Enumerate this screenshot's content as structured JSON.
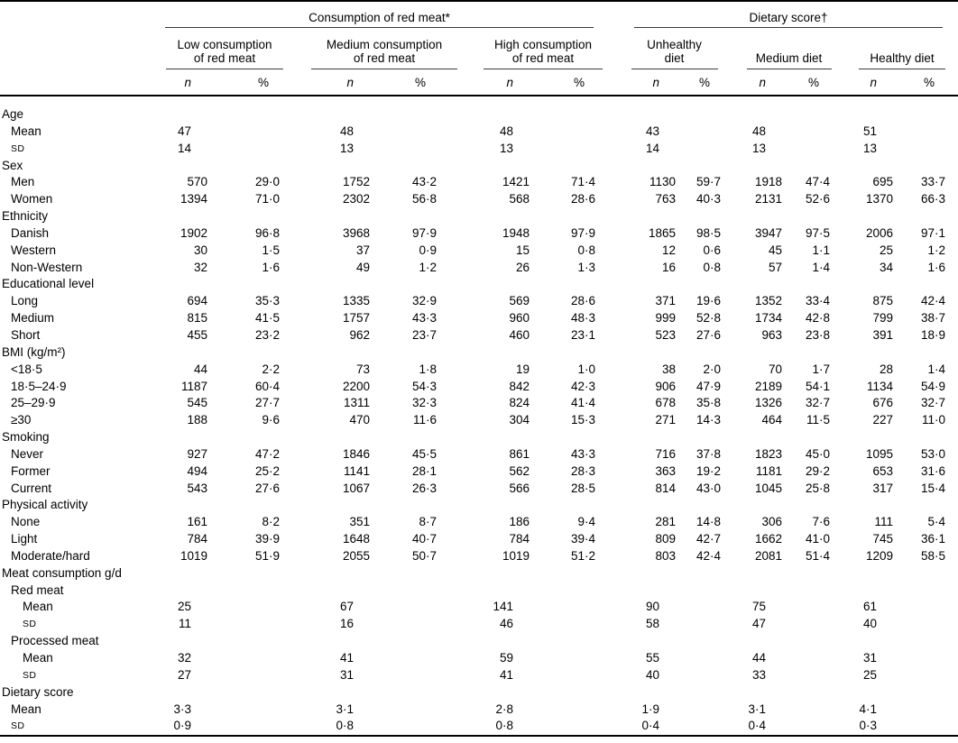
{
  "table": {
    "group_headers": [
      {
        "label": "Consumption of red meat*"
      },
      {
        "label": "Dietary score†"
      }
    ],
    "column_groups": [
      {
        "line1": "Low consumption",
        "line2": "of red meat"
      },
      {
        "line1": "Medium consumption",
        "line2": "of red meat"
      },
      {
        "line1": "High consumption",
        "line2": "of red meat"
      },
      {
        "line1": "Unhealthy",
        "line2": "diet"
      },
      {
        "line1": "Medium diet",
        "line2": ""
      },
      {
        "line1": "Healthy diet",
        "line2": ""
      }
    ],
    "subcolumns": {
      "n": "n",
      "pct": "%"
    },
    "rows": [
      {
        "type": "section",
        "label": "Age",
        "indent": 0
      },
      {
        "type": "stat",
        "label": "Mean",
        "indent": 1,
        "values": [
          "47",
          "48",
          "48",
          "43",
          "48",
          "51"
        ]
      },
      {
        "type": "stat",
        "label": "SD",
        "indent": 1,
        "smallcaps": true,
        "values": [
          "14",
          "13",
          "13",
          "14",
          "13",
          "13"
        ]
      },
      {
        "type": "section",
        "label": "Sex",
        "indent": 0
      },
      {
        "type": "data",
        "label": "Men",
        "indent": 1,
        "values": [
          "570",
          "29·0",
          "1752",
          "43·2",
          "1421",
          "71·4",
          "1130",
          "59·7",
          "1918",
          "47·4",
          "695",
          "33·7"
        ]
      },
      {
        "type": "data",
        "label": "Women",
        "indent": 1,
        "values": [
          "1394",
          "71·0",
          "2302",
          "56·8",
          "568",
          "28·6",
          "763",
          "40·3",
          "2131",
          "52·6",
          "1370",
          "66·3"
        ]
      },
      {
        "type": "section",
        "label": "Ethnicity",
        "indent": 0
      },
      {
        "type": "data",
        "label": "Danish",
        "indent": 1,
        "values": [
          "1902",
          "96·8",
          "3968",
          "97·9",
          "1948",
          "97·9",
          "1865",
          "98·5",
          "3947",
          "97·5",
          "2006",
          "97·1"
        ]
      },
      {
        "type": "data",
        "label": "Western",
        "indent": 1,
        "values": [
          "30",
          "1·5",
          "37",
          "0·9",
          "15",
          "0·8",
          "12",
          "0·6",
          "45",
          "1·1",
          "25",
          "1·2"
        ]
      },
      {
        "type": "data",
        "label": "Non-Western",
        "indent": 1,
        "values": [
          "32",
          "1·6",
          "49",
          "1·2",
          "26",
          "1·3",
          "16",
          "0·8",
          "57",
          "1·4",
          "34",
          "1·6"
        ]
      },
      {
        "type": "section",
        "label": "Educational level",
        "indent": 0
      },
      {
        "type": "data",
        "label": "Long",
        "indent": 1,
        "values": [
          "694",
          "35·3",
          "1335",
          "32·9",
          "569",
          "28·6",
          "371",
          "19·6",
          "1352",
          "33·4",
          "875",
          "42·4"
        ]
      },
      {
        "type": "data",
        "label": "Medium",
        "indent": 1,
        "values": [
          "815",
          "41·5",
          "1757",
          "43·3",
          "960",
          "48·3",
          "999",
          "52·8",
          "1734",
          "42·8",
          "799",
          "38·7"
        ]
      },
      {
        "type": "data",
        "label": "Short",
        "indent": 1,
        "values": [
          "455",
          "23·2",
          "962",
          "23·7",
          "460",
          "23·1",
          "523",
          "27·6",
          "963",
          "23·8",
          "391",
          "18·9"
        ]
      },
      {
        "type": "section",
        "label": "BMI (kg/m²)",
        "indent": 0
      },
      {
        "type": "data",
        "label": "<18·5",
        "indent": 1,
        "values": [
          "44",
          "2·2",
          "73",
          "1·8",
          "19",
          "1·0",
          "38",
          "2·0",
          "70",
          "1·7",
          "28",
          "1·4"
        ]
      },
      {
        "type": "data",
        "label": "18·5–24·9",
        "indent": 1,
        "values": [
          "1187",
          "60·4",
          "2200",
          "54·3",
          "842",
          "42·3",
          "906",
          "47·9",
          "2189",
          "54·1",
          "1134",
          "54·9"
        ]
      },
      {
        "type": "data",
        "label": "25–29·9",
        "indent": 1,
        "values": [
          "545",
          "27·7",
          "1311",
          "32·3",
          "824",
          "41·4",
          "678",
          "35·8",
          "1326",
          "32·7",
          "676",
          "32·7"
        ]
      },
      {
        "type": "data",
        "label": "≥30",
        "indent": 1,
        "values": [
          "188",
          "9·6",
          "470",
          "11·6",
          "304",
          "15·3",
          "271",
          "14·3",
          "464",
          "11·5",
          "227",
          "11·0"
        ]
      },
      {
        "type": "section",
        "label": "Smoking",
        "indent": 0
      },
      {
        "type": "data",
        "label": "Never",
        "indent": 1,
        "values": [
          "927",
          "47·2",
          "1846",
          "45·5",
          "861",
          "43·3",
          "716",
          "37·8",
          "1823",
          "45·0",
          "1095",
          "53·0"
        ]
      },
      {
        "type": "data",
        "label": "Former",
        "indent": 1,
        "values": [
          "494",
          "25·2",
          "1141",
          "28·1",
          "562",
          "28·3",
          "363",
          "19·2",
          "1181",
          "29·2",
          "653",
          "31·6"
        ]
      },
      {
        "type": "data",
        "label": "Current",
        "indent": 1,
        "values": [
          "543",
          "27·6",
          "1067",
          "26·3",
          "566",
          "28·5",
          "814",
          "43·0",
          "1045",
          "25·8",
          "317",
          "15·4"
        ]
      },
      {
        "type": "section",
        "label": "Physical activity",
        "indent": 0
      },
      {
        "type": "data",
        "label": "None",
        "indent": 1,
        "values": [
          "161",
          "8·2",
          "351",
          "8·7",
          "186",
          "9·4",
          "281",
          "14·8",
          "306",
          "7·6",
          "111",
          "5·4"
        ]
      },
      {
        "type": "data",
        "label": "Light",
        "indent": 1,
        "values": [
          "784",
          "39·9",
          "1648",
          "40·7",
          "784",
          "39·4",
          "809",
          "42·7",
          "1662",
          "41·0",
          "745",
          "36·1"
        ]
      },
      {
        "type": "data",
        "label": "Moderate/hard",
        "indent": 1,
        "values": [
          "1019",
          "51·9",
          "2055",
          "50·7",
          "1019",
          "51·2",
          "803",
          "42·4",
          "2081",
          "51·4",
          "1209",
          "58·5"
        ]
      },
      {
        "type": "section",
        "label": "Meat consumption g/d",
        "indent": 0
      },
      {
        "type": "section",
        "label": "Red meat",
        "indent": 1
      },
      {
        "type": "stat",
        "label": "Mean",
        "indent": 2,
        "values": [
          "25",
          "67",
          "141",
          "90",
          "75",
          "61"
        ]
      },
      {
        "type": "stat",
        "label": "SD",
        "indent": 2,
        "smallcaps": true,
        "values": [
          "11",
          "16",
          "46",
          "58",
          "47",
          "40"
        ]
      },
      {
        "type": "section",
        "label": "Processed meat",
        "indent": 1
      },
      {
        "type": "stat",
        "label": "Mean",
        "indent": 2,
        "values": [
          "32",
          "41",
          "59",
          "55",
          "44",
          "31"
        ]
      },
      {
        "type": "stat",
        "label": "SD",
        "indent": 2,
        "smallcaps": true,
        "values": [
          "27",
          "31",
          "41",
          "40",
          "33",
          "25"
        ]
      },
      {
        "type": "section",
        "label": "Dietary score",
        "indent": 0
      },
      {
        "type": "stat",
        "label": "Mean",
        "indent": 1,
        "values": [
          "3·3",
          "3·1",
          "2·8",
          "1·9",
          "3·1",
          "4·1"
        ]
      },
      {
        "type": "stat",
        "label": "SD",
        "indent": 1,
        "smallcaps": true,
        "values": [
          "0·9",
          "0·8",
          "0·8",
          "0·4",
          "0·4",
          "0·3"
        ]
      }
    ]
  }
}
